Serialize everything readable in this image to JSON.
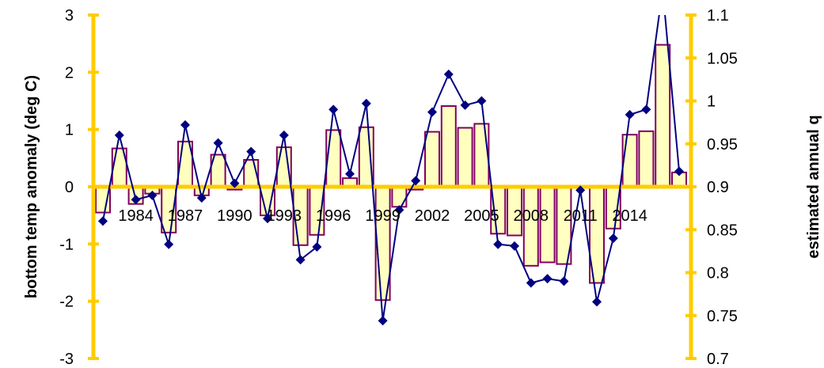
{
  "chart_data": {
    "type": "bar+line",
    "xlabel": "",
    "ylabel_left": "bottom temp anomaly (deg C)",
    "ylabel_right": "estimated annual q",
    "ylim_left": [
      -3,
      3
    ],
    "ylim_right": [
      0.7,
      1.1
    ],
    "yticks_left": [
      "-3",
      "-2",
      "-1",
      "0",
      "1",
      "2",
      "3"
    ],
    "yticks_right": [
      "0.7",
      "0.75",
      "0.8",
      "0.85",
      "0.9",
      "0.95",
      "1",
      "1.05",
      "1.1"
    ],
    "years": [
      1982,
      1983,
      1984,
      1985,
      1986,
      1987,
      1988,
      1989,
      1990,
      1991,
      1992,
      1993,
      1994,
      1995,
      1996,
      1997,
      1998,
      1999,
      2000,
      2001,
      2002,
      2003,
      2004,
      2005,
      2006,
      2007,
      2008,
      2009,
      2010,
      2011,
      2012,
      2013,
      2014,
      2015,
      2016,
      2017
    ],
    "x_tick_labels": [
      "1984",
      "1987",
      "1990",
      "1993",
      "1996",
      "1999",
      "2002",
      "2005",
      "2008",
      "2011",
      "2014"
    ],
    "grid": false,
    "legend": "none",
    "series": [
      {
        "axis": "left",
        "type": "bar",
        "values": [
          -0.45,
          0.67,
          -0.3,
          -0.12,
          -0.8,
          0.79,
          -0.15,
          0.56,
          -0.05,
          0.47,
          -0.5,
          0.69,
          -1.02,
          -0.84,
          0.99,
          0.15,
          1.04,
          -1.98,
          -0.35,
          -0.05,
          0.96,
          1.41,
          1.03,
          1.1,
          -0.82,
          -0.85,
          -1.38,
          -1.32,
          -1.35,
          -0.02,
          -1.68,
          -0.73,
          0.91,
          0.97,
          2.48,
          0.25
        ]
      },
      {
        "axis": "right",
        "type": "line",
        "values": [
          0.86,
          0.96,
          0.885,
          0.89,
          0.833,
          0.972,
          0.887,
          0.951,
          0.904,
          0.941,
          0.863,
          0.96,
          0.815,
          0.83,
          0.99,
          0.915,
          0.997,
          0.744,
          0.873,
          0.907,
          0.987,
          1.031,
          0.995,
          1.0,
          0.833,
          0.831,
          0.788,
          0.793,
          0.79,
          0.896,
          0.766,
          0.84,
          0.984,
          0.99,
          1.13,
          0.918
        ]
      }
    ]
  },
  "colors": {
    "axis": "#FFCC00",
    "bar_fill": "#FFFFC0",
    "bar_stroke": "#800060",
    "line": "#000080",
    "marker": "#000080"
  }
}
